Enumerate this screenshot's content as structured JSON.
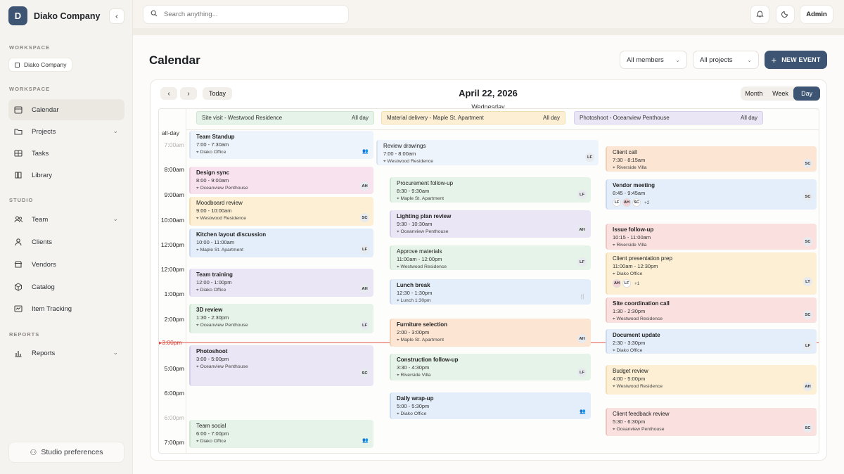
{
  "sidebar": {
    "brand_letter": "D",
    "brand_name": "Diako Company",
    "workspace_label_1": "WORKSPACE",
    "workspace_chip": "Diako Company",
    "workspace_label_2": "WORKSPACE",
    "nav_workspace": [
      {
        "label": "Calendar",
        "icon": "calendar-icon",
        "active": true
      },
      {
        "label": "Projects",
        "icon": "folder-icon",
        "chevron": true
      },
      {
        "label": "Tasks",
        "icon": "table-icon"
      },
      {
        "label": "Library",
        "icon": "book-icon"
      }
    ],
    "studio_label": "STUDIO",
    "nav_studio": [
      {
        "label": "Team",
        "icon": "users-icon",
        "chevron": true
      },
      {
        "label": "Clients",
        "icon": "person-icon"
      },
      {
        "label": "Vendors",
        "icon": "store-icon"
      },
      {
        "label": "Catalog",
        "icon": "box-icon"
      },
      {
        "label": "Item Tracking",
        "icon": "tracking-icon"
      }
    ],
    "reports_label": "REPORTS",
    "nav_reports": [
      {
        "label": "Reports",
        "icon": "bar-chart-icon",
        "chevron": true
      }
    ],
    "preferences": "Studio preferences"
  },
  "topbar": {
    "search_placeholder": "Search anything...",
    "admin": "Admin"
  },
  "page": {
    "title": "Calendar",
    "filter_members": "All members",
    "filter_projects": "All projects",
    "new_event": "NEW EVENT"
  },
  "calendar": {
    "today": "Today",
    "date": "April 22, 2026",
    "weekday": "Wednesday",
    "views": [
      "Month",
      "Week",
      "Day"
    ],
    "active_view": "Day",
    "allday_label": "all-day",
    "allday_events": [
      {
        "title": "Site visit - Westwood Residence",
        "tag": "All day",
        "color": "#e6f3e8"
      },
      {
        "title": "Material delivery - Maple St. Apartment",
        "tag": "All day",
        "color": "#fcefd3"
      },
      {
        "title": "Photoshoot - Oceanview Penthouse",
        "tag": "All day",
        "color": "#ebe6f5"
      }
    ],
    "time_labels": [
      "7:00am",
      "8:00am",
      "9:00am",
      "10:00am",
      "12:00pm",
      "12:00pm",
      "1:00pm",
      "2:00pm",
      "3:00pm",
      "5:00pm",
      "6:00pm",
      "6:00pm",
      "7:00pm"
    ],
    "now_label": "3:00pm",
    "events": [
      {
        "title": "Team Standup",
        "time": "7:00 - 7:30am",
        "loc": "Diako Office",
        "badge": "",
        "group": true,
        "color": "c-lightblue"
      },
      {
        "title": "Design sync",
        "time": "8:00 - 9:00am",
        "loc": "Oceanview Penthouse",
        "badge": "AH",
        "color": "c-pink"
      },
      {
        "title": "Moodboard review",
        "time": "9:00 - 10:00am",
        "loc": "Westwood Residence",
        "badge": "SC",
        "color": "c-yellow"
      },
      {
        "title": "Kitchen layout discussion",
        "time": "10:00 - 11:00am",
        "loc": "Maple St. Apartment",
        "badge": "LF",
        "color": "c-blue"
      },
      {
        "title": "Team training",
        "time": "12:00 - 1:00pm",
        "loc": "Diako Office",
        "badge": "AH",
        "color": "c-purple"
      },
      {
        "title": "3D review",
        "time": "1:30 - 2:30pm",
        "loc": "Oceanview Penthouse",
        "badge": "LF",
        "color": "c-green"
      },
      {
        "title": "Photoshoot",
        "time": "3:00 - 5:00pm",
        "loc": "Oceanview Penthouse",
        "badge": "SC",
        "color": "c-purple"
      },
      {
        "title": "Team social",
        "time": "6:00 - 7:00pm",
        "loc": "Diako Office",
        "badge": "",
        "group": true,
        "color": "c-green"
      },
      {
        "title": "Review drawings",
        "time": "7:00 - 8:00am",
        "loc": "Westwood Residence",
        "badge": "LF",
        "color": "c-lightblue"
      },
      {
        "title": "Procurement follow-up",
        "time": "8:30 - 9:30am",
        "loc": "Maple St. Apartment",
        "badge": "LF",
        "color": "c-green"
      },
      {
        "title": "Lighting plan review",
        "time": "9:30 - 10:30am",
        "loc": "Oceanview Penthouse",
        "badge": "AH",
        "color": "c-purple"
      },
      {
        "title": "Approve materials",
        "time": "11:00am - 12:00pm",
        "loc": "Westwood Residence",
        "badge": "LF",
        "color": "c-green"
      },
      {
        "title": "Lunch break",
        "time": "12:30 - 1:30pm",
        "loc": "Lunch 1:30pm",
        "badge": "",
        "food": true,
        "color": "c-blue"
      },
      {
        "title": "Furniture selection",
        "time": "2:00 - 3:00pm",
        "loc": "Maple St. Apartment",
        "badge": "AH",
        "color": "c-orange"
      },
      {
        "title": "Construction follow-up",
        "time": "3:30 - 4:30pm",
        "loc": "Riverside Villa",
        "badge": "LF",
        "color": "c-green"
      },
      {
        "title": "Daily wrap-up",
        "time": "5:00 - 5:30pm",
        "loc": "Diako Office",
        "badge": "",
        "group": true,
        "color": "c-blue"
      },
      {
        "title": "Client call",
        "time": "7:30 - 8:15am",
        "loc": "Riverside Villa",
        "badge": "SC",
        "color": "c-orange"
      },
      {
        "title": "Vendor meeting",
        "time": "8:45 - 9:45am",
        "loc": "",
        "badge": "SC",
        "avatars": [
          "LF",
          "AH",
          "SC"
        ],
        "more": "+2",
        "color": "c-blue"
      },
      {
        "title": "Issue follow-up",
        "time": "10:15 - 11:00am",
        "loc": "Riverside Villa",
        "badge": "SC",
        "color": "c-red"
      },
      {
        "title": "Client presentation prep",
        "time": "11:00am - 12:30pm",
        "loc": "Diako Office",
        "badge": "LT",
        "avatars": [
          "AH",
          "LF"
        ],
        "more": "+1",
        "color": "c-yellow"
      },
      {
        "title": "Site coordination call",
        "time": "1:30 - 2:30pm",
        "loc": "Westwood Residence",
        "badge": "SC",
        "color": "c-red"
      },
      {
        "title": "Document update",
        "time": "2:30 - 3:30pm",
        "loc": "Diako Office",
        "badge": "LF",
        "color": "c-blue"
      },
      {
        "title": "Budget review",
        "time": "4:00 - 5:00pm",
        "loc": "Westwood Residence",
        "badge": "AH",
        "color": "c-yellow"
      },
      {
        "title": "Client feedback review",
        "time": "5:30 - 6:30pm",
        "loc": "Oceanview Penthouse",
        "badge": "SC",
        "color": "c-red"
      }
    ]
  }
}
